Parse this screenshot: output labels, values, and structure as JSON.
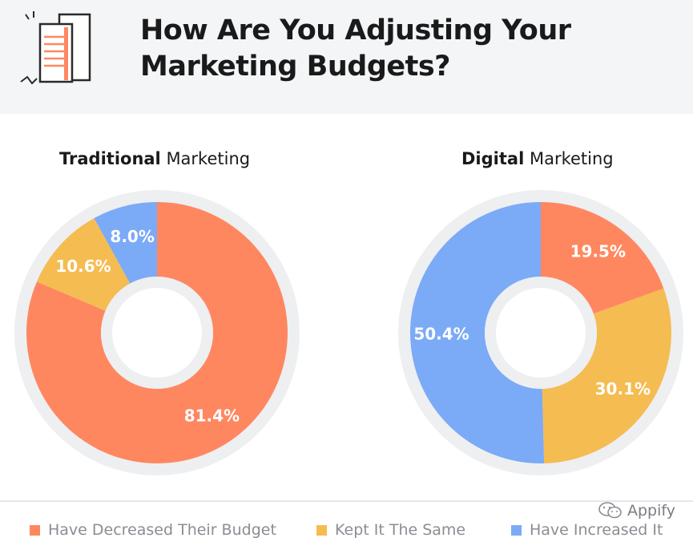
{
  "header": {
    "title": "How Are You Adjusting Your Marketing Budgets?"
  },
  "legend": [
    {
      "label": "Have Decreased Their Budget",
      "color": "#ff8760"
    },
    {
      "label": "Kept It The Same",
      "color": "#f5bc52"
    },
    {
      "label": "Have Increased It",
      "color": "#7baaf7"
    }
  ],
  "watermark": {
    "text": "Appify",
    "icon": "wechat-icon"
  },
  "chart_data": [
    {
      "type": "pie",
      "title_bold": "Traditional",
      "title_rest": " Marketing",
      "categories": [
        "Have Decreased Their Budget",
        "Kept It The Same",
        "Have Increased It"
      ],
      "values": [
        81.4,
        10.6,
        8.0
      ],
      "labels": [
        "81.4%",
        "10.6%",
        "8.0%"
      ],
      "colors": [
        "#ff8760",
        "#f5bc52",
        "#7baaf7"
      ],
      "donut": true
    },
    {
      "type": "pie",
      "title_bold": "Digital",
      "title_rest": " Marketing",
      "categories": [
        "Have Decreased Their Budget",
        "Kept It The Same",
        "Have Increased It"
      ],
      "values": [
        19.5,
        30.1,
        50.4
      ],
      "labels": [
        "19.5%",
        "30.1%",
        "50.4%"
      ],
      "colors": [
        "#ff8760",
        "#f5bc52",
        "#7baaf7"
      ],
      "donut": true
    }
  ]
}
